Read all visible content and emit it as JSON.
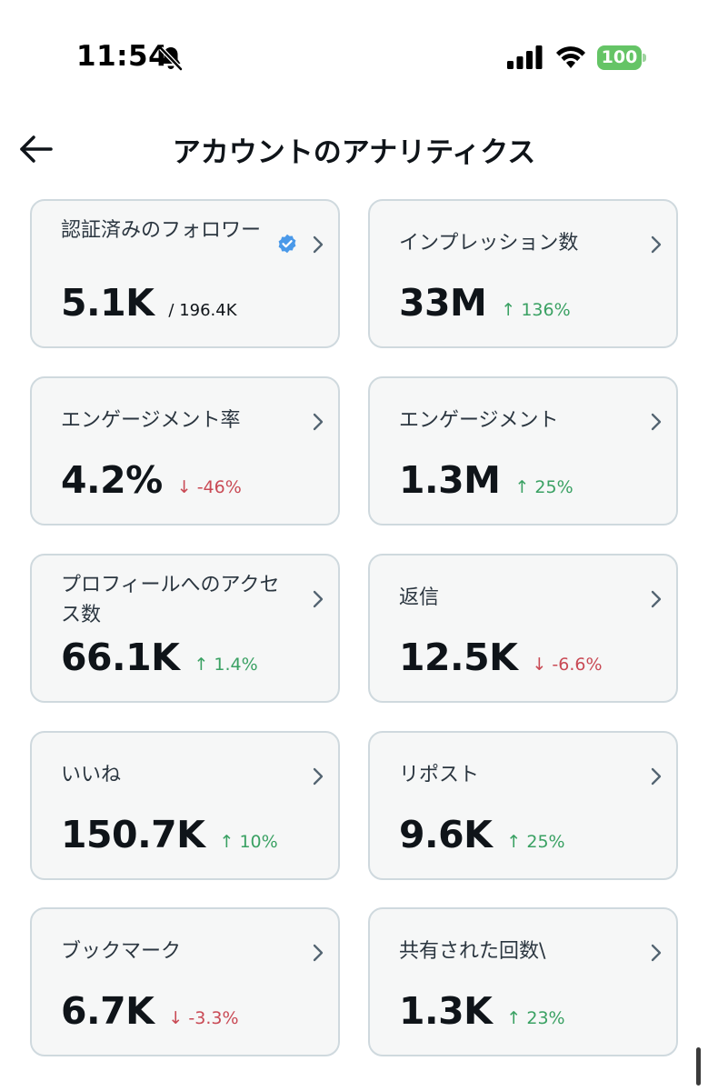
{
  "status_bar": {
    "time": "11:54",
    "battery": "100",
    "icons": [
      "bell-off-icon",
      "cellular-signal-icon",
      "wifi-icon",
      "battery-icon"
    ]
  },
  "header": {
    "title": "アカウントのアナリティクス",
    "back_icon": "back-arrow-icon"
  },
  "colors": {
    "up": "#3aa163",
    "down": "#c94a55",
    "verified": "#4a99e9",
    "battery": "#65c466"
  },
  "cards": [
    {
      "label": "認証済みのフォロワー",
      "value": "5.1K",
      "sub": "/ 196.4K",
      "delta": "",
      "trend": "",
      "verified": true
    },
    {
      "label": "インプレッション数",
      "value": "33M",
      "sub": "",
      "delta": "136%",
      "trend": "up"
    },
    {
      "label": "エンゲージメント率",
      "value": "4.2%",
      "sub": "",
      "delta": "-46%",
      "trend": "down"
    },
    {
      "label": "エンゲージメント",
      "value": "1.3M",
      "sub": "",
      "delta": "25%",
      "trend": "up"
    },
    {
      "label": "プロフィールへのアクセス数",
      "value": "66.1K",
      "sub": "",
      "delta": "1.4%",
      "trend": "up"
    },
    {
      "label": "返信",
      "value": "12.5K",
      "sub": "",
      "delta": "-6.6%",
      "trend": "down"
    },
    {
      "label": "いいね",
      "value": "150.7K",
      "sub": "",
      "delta": "10%",
      "trend": "up"
    },
    {
      "label": "リポスト",
      "value": "9.6K",
      "sub": "",
      "delta": "25%",
      "trend": "up"
    },
    {
      "label": "ブックマーク",
      "value": "6.7K",
      "sub": "",
      "delta": "-3.3%",
      "trend": "down"
    },
    {
      "label": "共有された回数\\",
      "value": "1.3K",
      "sub": "",
      "delta": "23%",
      "trend": "up"
    }
  ]
}
